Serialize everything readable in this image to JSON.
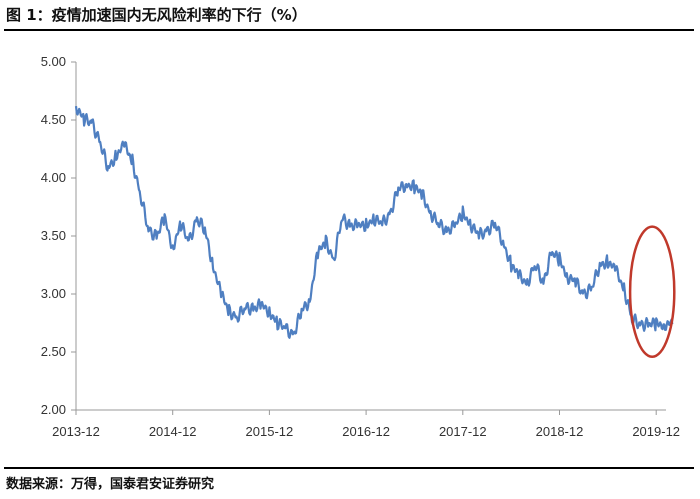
{
  "header": {
    "title": "图 1：疫情加速国内无风险利率的下行（%）"
  },
  "footer": {
    "source": "数据来源：万得，国泰君安证券研究"
  },
  "chart_data": {
    "type": "line",
    "title": "图 1：疫情加速国内无风险利率的下行（%）",
    "xlabel": "",
    "ylabel": "",
    "ylim": [
      2.0,
      5.0
    ],
    "yticks": [
      "5.00",
      "4.50",
      "4.00",
      "3.50",
      "3.00",
      "2.50",
      "2.00"
    ],
    "xticks": [
      "2013-12",
      "2014-12",
      "2015-12",
      "2016-12",
      "2017-12",
      "2018-12",
      "2019-12"
    ],
    "grid": false,
    "legend": "none",
    "line_color": "#4f7fc1",
    "annotation": {
      "shape": "ellipse",
      "color": "#c0392b",
      "x_range": [
        "2019-09",
        "2020-02"
      ]
    },
    "series": [
      {
        "x": [
          "2013-12",
          "2014-01",
          "2014-02",
          "2014-03",
          "2014-04",
          "2014-05",
          "2014-06",
          "2014-07",
          "2014-08",
          "2014-09",
          "2014-10",
          "2014-11",
          "2014-12",
          "2015-01",
          "2015-02",
          "2015-03",
          "2015-04",
          "2015-05",
          "2015-06",
          "2015-07",
          "2015-08",
          "2015-09",
          "2015-10",
          "2015-11",
          "2015-12",
          "2016-01",
          "2016-02",
          "2016-03",
          "2016-04",
          "2016-05",
          "2016-06",
          "2016-07",
          "2016-08",
          "2016-09",
          "2016-10",
          "2016-11",
          "2016-12",
          "2017-01",
          "2017-02",
          "2017-03",
          "2017-04",
          "2017-05",
          "2017-06",
          "2017-07",
          "2017-08",
          "2017-09",
          "2017-10",
          "2017-11",
          "2017-12",
          "2018-01",
          "2018-02",
          "2018-03",
          "2018-04",
          "2018-05",
          "2018-06",
          "2018-07",
          "2018-08",
          "2018-09",
          "2018-10",
          "2018-11",
          "2018-12",
          "2019-01",
          "2019-02",
          "2019-03",
          "2019-04",
          "2019-05",
          "2019-06",
          "2019-07",
          "2019-08",
          "2019-09",
          "2019-10",
          "2019-11",
          "2019-12",
          "2020-01",
          "2020-02"
        ],
        "values": [
          4.62,
          4.5,
          4.48,
          4.3,
          4.08,
          4.2,
          4.28,
          4.15,
          3.85,
          3.55,
          3.5,
          3.65,
          3.4,
          3.6,
          3.45,
          3.65,
          3.55,
          3.25,
          3.0,
          2.85,
          2.8,
          2.88,
          2.88,
          2.9,
          2.85,
          2.75,
          2.7,
          2.65,
          2.85,
          2.95,
          3.35,
          3.45,
          3.3,
          3.65,
          3.6,
          3.58,
          3.6,
          3.65,
          3.6,
          3.7,
          3.9,
          3.95,
          3.92,
          3.85,
          3.7,
          3.6,
          3.55,
          3.58,
          3.7,
          3.6,
          3.5,
          3.55,
          3.6,
          3.45,
          3.25,
          3.15,
          3.1,
          3.25,
          3.1,
          3.35,
          3.3,
          3.15,
          3.1,
          3.0,
          3.05,
          3.25,
          3.28,
          3.2,
          3.05,
          2.78,
          2.74,
          2.74,
          2.74,
          2.74,
          2.74
        ]
      }
    ]
  }
}
